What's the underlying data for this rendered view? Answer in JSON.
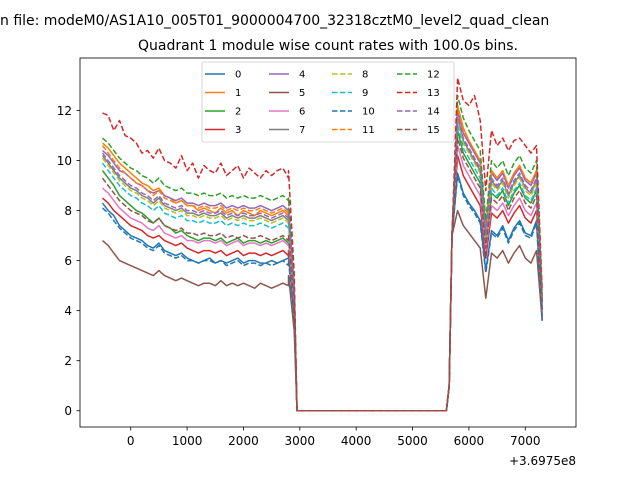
{
  "chart_data": {
    "type": "line",
    "suptitle": "n file: modeM0/AS1A10_005T01_9000004700_32318cztM0_level2_quad_clean",
    "title": "Quadrant 1 module wise count rates with 100.0s bins.",
    "xlabel": "",
    "ylabel": "",
    "x_offset_label": "+3.6975e8",
    "xlim": [
      -900,
      7900
    ],
    "ylim": [
      -0.65,
      14.1
    ],
    "xticks": [
      0,
      1000,
      2000,
      3000,
      4000,
      5000,
      6000,
      7000
    ],
    "xtick_labels": [
      "0",
      "1000",
      "2000",
      "3000",
      "4000",
      "5000",
      "6000",
      "7000"
    ],
    "yticks": [
      0,
      2,
      4,
      6,
      8,
      10,
      12
    ],
    "ytick_labels": [
      "0",
      "2",
      "4",
      "6",
      "8",
      "10",
      "12"
    ],
    "grid": false,
    "legend_placement": "upper-center",
    "legend_ncol": 4,
    "time_axis": {
      "t_start": -500,
      "step": 100,
      "seg1_end": 2800,
      "drop": [
        2900,
        2950
      ],
      "zero_end": 5600,
      "rise": [
        5650,
        5700
      ],
      "seg2_start": 5800,
      "seg2_end": 7200,
      "t_end": 7300
    },
    "series": [
      {
        "name": "0",
        "color": "#1f77b4",
        "dashed": false,
        "seg1": [
          8.3,
          8.0,
          7.8,
          7.4,
          7.2,
          7.0,
          6.9,
          6.8,
          6.6,
          6.5,
          6.7,
          6.4,
          6.3,
          6.2,
          6.3,
          6.1,
          6.0,
          5.9,
          6.0,
          6.1,
          5.9,
          6.0,
          5.9,
          6.0,
          6.1,
          5.9,
          6.0,
          6.0,
          5.9,
          5.9,
          6.0,
          5.9,
          6.0,
          6.1
        ],
        "seg1_end_val": 6.2,
        "drop_val": 3.8,
        "seg2": [
          9.5,
          8.7,
          8.3,
          8.0,
          7.6,
          5.6,
          7.2,
          7.0,
          7.4,
          6.8,
          7.3,
          7.6,
          7.1,
          7.0,
          7.6
        ],
        "last": 3.6
      },
      {
        "name": "1",
        "color": "#ff7f0e",
        "dashed": false,
        "seg1": [
          10.7,
          10.5,
          10.2,
          9.9,
          9.7,
          9.5,
          9.3,
          9.1,
          9.0,
          8.8,
          8.9,
          8.6,
          8.5,
          8.3,
          8.4,
          8.2,
          8.2,
          8.0,
          8.1,
          8.0,
          7.9,
          8.1,
          7.9,
          8.0,
          7.8,
          8.0,
          7.9,
          7.8,
          8.0,
          7.9,
          7.8,
          7.9,
          8.0,
          7.8
        ],
        "seg1_end_val": 7.9,
        "drop_val": 4.8,
        "seg2": [
          12.2,
          11.3,
          10.8,
          10.4,
          10.0,
          7.4,
          9.6,
          9.3,
          9.6,
          9.0,
          9.5,
          9.8,
          9.3,
          9.1,
          9.6
        ],
        "last": 4.4
      },
      {
        "name": "2",
        "color": "#2ca02c",
        "dashed": false,
        "seg1": [
          9.6,
          9.3,
          9.0,
          8.6,
          8.4,
          8.2,
          8.0,
          7.9,
          7.7,
          7.5,
          7.7,
          7.4,
          7.3,
          7.1,
          7.2,
          7.0,
          6.9,
          6.8,
          6.9,
          6.9,
          6.8,
          6.9,
          6.7,
          6.8,
          6.9,
          6.7,
          6.8,
          6.8,
          6.7,
          6.8,
          6.7,
          6.8,
          6.9,
          6.7
        ],
        "seg1_end_val": 6.9,
        "drop_val": 4.3,
        "seg2": [
          11.2,
          10.3,
          9.9,
          9.5,
          9.1,
          6.6,
          8.7,
          8.5,
          8.8,
          8.2,
          8.7,
          9.0,
          8.5,
          8.3,
          8.8
        ],
        "last": 4.0
      },
      {
        "name": "3",
        "color": "#d62728",
        "dashed": false,
        "seg1": [
          8.5,
          8.3,
          8.0,
          7.8,
          7.6,
          7.4,
          7.3,
          7.2,
          7.0,
          6.9,
          7.0,
          6.8,
          6.7,
          6.6,
          6.7,
          6.5,
          6.4,
          6.3,
          6.4,
          6.4,
          6.3,
          6.4,
          6.2,
          6.3,
          6.4,
          6.2,
          6.3,
          6.3,
          6.2,
          6.3,
          6.2,
          6.3,
          6.4,
          6.2
        ],
        "seg1_end_val": 6.4,
        "drop_val": 4.0,
        "seg2": [
          10.2,
          9.4,
          9.0,
          8.6,
          8.2,
          6.1,
          7.9,
          7.7,
          8.0,
          7.5,
          7.9,
          8.2,
          7.7,
          7.5,
          8.0
        ],
        "last": 3.8
      },
      {
        "name": "4",
        "color": "#9467bd",
        "dashed": false,
        "seg1": [
          10.4,
          10.2,
          9.9,
          9.6,
          9.5,
          9.3,
          9.1,
          9.0,
          8.8,
          8.7,
          8.8,
          8.6,
          8.5,
          8.4,
          8.5,
          8.3,
          8.3,
          8.2,
          8.3,
          8.2,
          8.2,
          8.3,
          8.1,
          8.2,
          8.1,
          8.2,
          8.1,
          8.1,
          8.2,
          8.1,
          8.0,
          8.1,
          8.2,
          8.0
        ],
        "seg1_end_val": 8.1,
        "drop_val": 4.9,
        "seg2": [
          12.0,
          11.1,
          10.7,
          10.3,
          9.9,
          7.2,
          9.5,
          9.2,
          9.5,
          8.9,
          9.4,
          9.7,
          9.2,
          9.0,
          9.5
        ],
        "last": 4.4
      },
      {
        "name": "5",
        "color": "#8c564b",
        "dashed": false,
        "seg1": [
          6.8,
          6.6,
          6.3,
          6.0,
          5.9,
          5.8,
          5.7,
          5.6,
          5.5,
          5.4,
          5.6,
          5.4,
          5.3,
          5.2,
          5.3,
          5.2,
          5.1,
          5.0,
          5.1,
          5.1,
          5.0,
          5.2,
          5.0,
          5.1,
          5.0,
          5.1,
          5.0,
          4.9,
          5.1,
          5.0,
          4.9,
          5.0,
          5.1,
          5.0
        ],
        "seg1_end_val": 5.4,
        "drop_val": 3.2,
        "seg2": [
          8.0,
          7.4,
          7.1,
          6.8,
          6.5,
          4.5,
          6.3,
          6.1,
          6.4,
          5.9,
          6.3,
          6.6,
          6.1,
          5.9,
          6.4
        ],
        "last": 3.6
      },
      {
        "name": "6",
        "color": "#e377c2",
        "dashed": false,
        "seg1": [
          8.9,
          8.7,
          8.4,
          8.1,
          7.9,
          7.7,
          7.6,
          7.5,
          7.3,
          7.2,
          7.4,
          7.1,
          7.0,
          6.9,
          7.0,
          6.8,
          6.8,
          6.7,
          6.8,
          6.8,
          6.7,
          6.8,
          6.6,
          6.7,
          6.8,
          6.6,
          6.7,
          6.7,
          6.6,
          6.7,
          6.6,
          6.7,
          6.8,
          6.6
        ],
        "seg1_end_val": 6.8,
        "drop_val": 4.2,
        "seg2": [
          10.6,
          9.8,
          9.4,
          9.0,
          8.6,
          6.4,
          8.2,
          8.0,
          8.3,
          7.8,
          8.2,
          8.5,
          8.0,
          7.8,
          8.3
        ],
        "last": 3.9
      },
      {
        "name": "7",
        "color": "#7f7f7f",
        "dashed": false,
        "seg1": [
          10.2,
          9.9,
          9.6,
          9.3,
          9.1,
          8.9,
          8.8,
          8.6,
          8.5,
          8.3,
          8.5,
          8.2,
          8.1,
          8.0,
          8.1,
          7.9,
          7.9,
          7.8,
          7.9,
          7.8,
          7.8,
          7.9,
          7.7,
          7.8,
          7.7,
          7.8,
          7.7,
          7.7,
          7.8,
          7.7,
          7.6,
          7.7,
          7.8,
          7.6
        ],
        "seg1_end_val": 7.8,
        "drop_val": 4.7,
        "seg2": [
          11.7,
          10.8,
          10.4,
          10.0,
          9.6,
          7.0,
          9.2,
          8.9,
          9.2,
          8.6,
          9.1,
          9.4,
          8.9,
          8.7,
          9.2
        ],
        "last": 4.3
      },
      {
        "name": "8",
        "color": "#bcbd22",
        "dashed": true,
        "seg1": [
          10.1,
          9.8,
          9.5,
          9.2,
          9.0,
          8.8,
          8.7,
          8.5,
          8.4,
          8.2,
          8.4,
          8.1,
          8.0,
          7.9,
          8.0,
          7.8,
          7.8,
          7.7,
          7.8,
          7.7,
          7.7,
          7.8,
          7.6,
          7.7,
          7.6,
          7.7,
          7.6,
          7.6,
          7.7,
          7.6,
          7.5,
          7.6,
          7.7,
          7.5
        ],
        "seg1_end_val": 7.7,
        "drop_val": 4.6,
        "seg2": [
          11.6,
          10.7,
          10.3,
          9.9,
          9.5,
          6.9,
          9.1,
          8.8,
          9.1,
          8.5,
          9.0,
          9.3,
          8.8,
          8.6,
          9.1
        ],
        "last": 4.2
      },
      {
        "name": "9",
        "color": "#17becf",
        "dashed": true,
        "seg1": [
          9.9,
          9.6,
          9.3,
          9.0,
          8.8,
          8.6,
          8.5,
          8.3,
          8.2,
          8.0,
          8.2,
          7.9,
          7.8,
          7.7,
          7.8,
          7.6,
          7.6,
          7.5,
          7.6,
          7.5,
          7.5,
          7.6,
          7.4,
          7.5,
          7.4,
          7.5,
          7.4,
          7.4,
          7.5,
          7.4,
          7.3,
          7.4,
          7.5,
          7.3
        ],
        "seg1_end_val": 7.5,
        "drop_val": 4.5,
        "seg2": [
          11.4,
          10.5,
          10.1,
          9.7,
          9.3,
          6.8,
          8.9,
          8.6,
          8.9,
          8.3,
          8.8,
          9.1,
          8.6,
          8.4,
          8.9
        ],
        "last": 4.1
      },
      {
        "name": "10",
        "color": "#1f77b4",
        "dashed": true,
        "seg1": [
          8.1,
          7.9,
          7.6,
          7.3,
          7.1,
          6.9,
          6.8,
          6.7,
          6.5,
          6.4,
          6.6,
          6.3,
          6.2,
          6.1,
          6.2,
          6.0,
          6.0,
          5.9,
          6.0,
          6.0,
          5.9,
          6.0,
          5.8,
          5.9,
          6.0,
          5.8,
          5.9,
          5.9,
          5.8,
          5.9,
          5.8,
          5.9,
          6.0,
          5.8
        ],
        "seg1_end_val": 6.0,
        "drop_val": 3.7,
        "seg2": [
          9.4,
          8.6,
          8.2,
          7.9,
          7.5,
          5.5,
          7.1,
          6.9,
          7.3,
          6.7,
          7.2,
          7.5,
          7.0,
          6.9,
          7.5
        ],
        "last": 3.6
      },
      {
        "name": "11",
        "color": "#ff7f0e",
        "dashed": true,
        "seg1": [
          10.6,
          10.3,
          10.0,
          9.7,
          9.5,
          9.3,
          9.1,
          9.0,
          8.8,
          8.6,
          8.8,
          8.5,
          8.4,
          8.3,
          8.4,
          8.2,
          8.2,
          8.1,
          8.2,
          8.1,
          8.1,
          8.2,
          8.0,
          8.1,
          8.0,
          8.1,
          8.0,
          8.0,
          8.1,
          8.0,
          7.9,
          8.0,
          8.1,
          7.9
        ],
        "seg1_end_val": 8.0,
        "drop_val": 4.8,
        "seg2": [
          12.1,
          11.2,
          10.8,
          10.4,
          10.0,
          7.3,
          9.6,
          9.3,
          9.6,
          9.0,
          9.5,
          9.8,
          9.3,
          9.1,
          9.6
        ],
        "last": 4.4
      },
      {
        "name": "12",
        "color": "#2ca02c",
        "dashed": true,
        "seg1": [
          10.9,
          10.7,
          10.4,
          10.1,
          9.9,
          9.7,
          9.6,
          9.4,
          9.3,
          9.1,
          9.3,
          9.0,
          8.9,
          8.8,
          8.9,
          8.7,
          8.7,
          8.6,
          8.7,
          8.6,
          8.6,
          8.7,
          8.5,
          8.6,
          8.5,
          8.6,
          8.5,
          8.5,
          8.6,
          8.5,
          8.4,
          8.5,
          8.6,
          8.4
        ],
        "seg1_end_val": 8.5,
        "drop_val": 5.0,
        "seg2": [
          12.6,
          11.7,
          11.2,
          10.8,
          10.4,
          7.6,
          10.0,
          9.7,
          10.0,
          9.4,
          9.9,
          10.2,
          9.7,
          9.5,
          10.0
        ],
        "last": 4.6
      },
      {
        "name": "13",
        "color": "#d62728",
        "dashed": true,
        "seg1": [
          11.9,
          11.8,
          11.2,
          11.6,
          11.0,
          10.9,
          10.7,
          10.3,
          10.4,
          10.1,
          10.5,
          10.0,
          9.9,
          9.7,
          10.2,
          9.6,
          9.9,
          9.3,
          9.8,
          9.6,
          9.5,
          9.9,
          9.4,
          9.6,
          9.8,
          9.3,
          9.7,
          9.5,
          9.3,
          9.6,
          9.4,
          9.6,
          9.7,
          9.3
        ],
        "seg1_end_val": 9.6,
        "drop_val": 5.5,
        "seg2": [
          13.3,
          12.4,
          12.2,
          12.6,
          11.6,
          8.8,
          11.2,
          10.6,
          10.9,
          10.4,
          10.8,
          10.9,
          10.6,
          10.3,
          10.6
        ],
        "last": 4.8
      },
      {
        "name": "14",
        "color": "#9467bd",
        "dashed": true,
        "seg1": [
          10.3,
          10.0,
          9.7,
          9.4,
          9.2,
          9.0,
          8.9,
          8.7,
          8.6,
          8.4,
          8.6,
          8.3,
          8.2,
          8.1,
          8.2,
          8.0,
          8.0,
          7.9,
          8.0,
          7.9,
          7.9,
          8.0,
          7.8,
          7.9,
          7.8,
          7.9,
          7.8,
          7.8,
          7.9,
          7.8,
          7.7,
          7.8,
          7.9,
          7.7
        ],
        "seg1_end_val": 7.9,
        "drop_val": 4.7,
        "seg2": [
          11.8,
          10.9,
          10.5,
          10.1,
          9.7,
          7.1,
          9.3,
          9.0,
          9.3,
          8.7,
          9.2,
          9.5,
          9.0,
          8.8,
          9.3
        ],
        "last": 4.3
      },
      {
        "name": "15",
        "color": "#8c564b",
        "dashed": true,
        "seg1": [
          9.3,
          9.0,
          8.7,
          8.4,
          8.2,
          8.0,
          7.9,
          7.8,
          7.6,
          7.5,
          7.7,
          7.4,
          7.3,
          7.2,
          7.3,
          7.1,
          7.1,
          7.0,
          7.1,
          7.0,
          7.0,
          7.1,
          6.9,
          7.0,
          6.9,
          7.0,
          6.9,
          6.9,
          7.0,
          6.9,
          6.8,
          6.9,
          7.0,
          6.8
        ],
        "seg1_end_val": 7.0,
        "drop_val": 4.3,
        "seg2": [
          10.9,
          10.1,
          9.7,
          9.3,
          8.9,
          6.5,
          8.5,
          8.3,
          8.6,
          8.0,
          8.5,
          8.8,
          8.3,
          8.1,
          8.6
        ],
        "last": 4.0
      }
    ]
  }
}
